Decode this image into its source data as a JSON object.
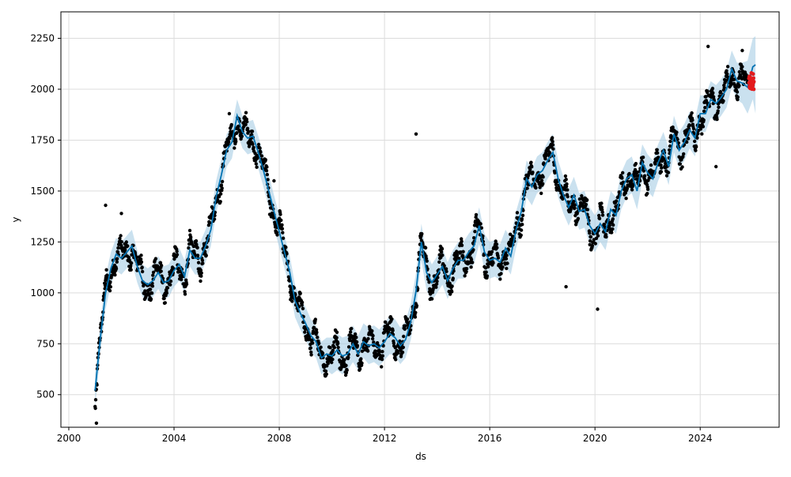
{
  "chart_data": {
    "type": "line",
    "xlabel": "ds",
    "ylabel": "y",
    "xlim": [
      1999.7,
      2027.0
    ],
    "ylim": [
      340,
      2380
    ],
    "x_ticks": [
      2000,
      2004,
      2008,
      2012,
      2016,
      2020,
      2024
    ],
    "x_tick_labels": [
      "2000",
      "2004",
      "2008",
      "2012",
      "2016",
      "2020",
      "2024"
    ],
    "y_ticks": [
      500,
      750,
      1000,
      1250,
      1500,
      1750,
      2000,
      2250
    ],
    "y_tick_labels": [
      "500",
      "750",
      "1000",
      "1250",
      "1500",
      "1750",
      "2000",
      "2250"
    ],
    "grid": true,
    "colors": {
      "forecast_line": "#0072B2",
      "uncertainty_band": "#a6cde5",
      "observed_points": "#000000",
      "future_points": "#e31a1c",
      "grid": "#dcdcdc"
    },
    "forecast": {
      "x": [
        2001.0,
        2001.2,
        2001.4,
        2001.6,
        2001.8,
        2002.0,
        2002.2,
        2002.4,
        2002.6,
        2002.8,
        2003.0,
        2003.2,
        2003.4,
        2003.6,
        2003.8,
        2004.0,
        2004.2,
        2004.4,
        2004.6,
        2004.8,
        2005.0,
        2005.2,
        2005.4,
        2005.6,
        2005.8,
        2006.0,
        2006.2,
        2006.4,
        2006.6,
        2006.8,
        2007.0,
        2007.2,
        2007.4,
        2007.6,
        2007.8,
        2008.0,
        2008.2,
        2008.4,
        2008.6,
        2008.8,
        2009.0,
        2009.2,
        2009.4,
        2009.6,
        2009.8,
        2010.0,
        2010.2,
        2010.4,
        2010.6,
        2010.8,
        2011.0,
        2011.2,
        2011.4,
        2011.6,
        2011.8,
        2012.0,
        2012.2,
        2012.4,
        2012.6,
        2012.8,
        2013.0,
        2013.2,
        2013.4,
        2013.6,
        2013.8,
        2014.0,
        2014.2,
        2014.4,
        2014.6,
        2014.8,
        2015.0,
        2015.2,
        2015.4,
        2015.6,
        2015.8,
        2016.0,
        2016.2,
        2016.4,
        2016.6,
        2016.8,
        2017.0,
        2017.2,
        2017.4,
        2017.6,
        2017.8,
        2018.0,
        2018.2,
        2018.4,
        2018.6,
        2018.8,
        2019.0,
        2019.2,
        2019.4,
        2019.6,
        2019.8,
        2020.0,
        2020.2,
        2020.4,
        2020.6,
        2020.8,
        2021.0,
        2021.2,
        2021.4,
        2021.6,
        2021.8,
        2022.0,
        2022.2,
        2022.4,
        2022.6,
        2022.8,
        2023.0,
        2023.2,
        2023.4,
        2023.6,
        2023.8,
        2024.0,
        2024.2,
        2024.4,
        2024.6,
        2024.8,
        2025.0,
        2025.2,
        2025.4,
        2025.6,
        2025.8,
        2026.0,
        2026.1
      ],
      "yhat": [
        520,
        780,
        1000,
        1120,
        1190,
        1170,
        1200,
        1230,
        1130,
        1060,
        1040,
        1060,
        1100,
        1050,
        1060,
        1110,
        1140,
        1080,
        1210,
        1170,
        1170,
        1230,
        1310,
        1470,
        1580,
        1700,
        1740,
        1870,
        1790,
        1760,
        1770,
        1690,
        1600,
        1500,
        1400,
        1300,
        1200,
        1100,
        960,
        900,
        850,
        790,
        760,
        680,
        700,
        690,
        720,
        690,
        700,
        750,
        700,
        760,
        740,
        750,
        730,
        760,
        800,
        780,
        740,
        770,
        860,
        1010,
        1250,
        1100,
        1050,
        1090,
        1130,
        1060,
        1120,
        1160,
        1160,
        1200,
        1230,
        1330,
        1200,
        1160,
        1170,
        1150,
        1220,
        1180,
        1310,
        1400,
        1560,
        1520,
        1580,
        1600,
        1650,
        1690,
        1560,
        1480,
        1420,
        1480,
        1400,
        1410,
        1330,
        1290,
        1340,
        1300,
        1410,
        1380,
        1500,
        1560,
        1580,
        1500,
        1640,
        1590,
        1560,
        1640,
        1700,
        1620,
        1780,
        1700,
        1740,
        1800,
        1760,
        1880,
        1880,
        1950,
        1930,
        1960,
        2000,
        2100,
        2040,
        2030,
        2010,
        2110,
        2120
      ],
      "yhat_lower": [
        440,
        700,
        920,
        1040,
        1110,
        1090,
        1120,
        1150,
        1050,
        980,
        960,
        980,
        1020,
        970,
        980,
        1030,
        1060,
        1000,
        1130,
        1090,
        1090,
        1150,
        1230,
        1390,
        1500,
        1620,
        1660,
        1790,
        1710,
        1680,
        1690,
        1610,
        1520,
        1420,
        1320,
        1220,
        1120,
        1020,
        880,
        820,
        770,
        710,
        680,
        600,
        620,
        600,
        620,
        600,
        620,
        660,
        620,
        680,
        650,
        660,
        640,
        670,
        700,
        690,
        650,
        680,
        770,
        920,
        1160,
        1010,
        960,
        1000,
        1040,
        970,
        1030,
        1070,
        1070,
        1110,
        1140,
        1240,
        1110,
        1070,
        1080,
        1060,
        1130,
        1090,
        1220,
        1310,
        1470,
        1430,
        1490,
        1510,
        1560,
        1600,
        1470,
        1390,
        1330,
        1390,
        1310,
        1320,
        1240,
        1200,
        1250,
        1210,
        1320,
        1290,
        1410,
        1470,
        1490,
        1410,
        1550,
        1500,
        1470,
        1550,
        1610,
        1530,
        1690,
        1610,
        1650,
        1710,
        1670,
        1790,
        1790,
        1860,
        1840,
        1870,
        1910,
        2010,
        1950,
        1930,
        1880,
        1950,
        1880
      ],
      "yhat_upper": [
        600,
        860,
        1080,
        1200,
        1270,
        1250,
        1280,
        1310,
        1210,
        1140,
        1120,
        1140,
        1180,
        1130,
        1140,
        1190,
        1220,
        1160,
        1290,
        1250,
        1250,
        1310,
        1390,
        1550,
        1660,
        1780,
        1820,
        1950,
        1870,
        1840,
        1850,
        1770,
        1680,
        1580,
        1480,
        1380,
        1280,
        1180,
        1040,
        980,
        930,
        870,
        840,
        760,
        780,
        780,
        800,
        780,
        790,
        840,
        790,
        850,
        830,
        840,
        820,
        850,
        890,
        870,
        830,
        860,
        950,
        1100,
        1340,
        1190,
        1140,
        1180,
        1220,
        1150,
        1210,
        1250,
        1250,
        1290,
        1320,
        1420,
        1290,
        1250,
        1260,
        1240,
        1310,
        1270,
        1400,
        1490,
        1650,
        1610,
        1670,
        1690,
        1740,
        1780,
        1650,
        1570,
        1510,
        1570,
        1490,
        1500,
        1420,
        1380,
        1430,
        1390,
        1500,
        1470,
        1590,
        1650,
        1670,
        1590,
        1730,
        1680,
        1650,
        1730,
        1790,
        1710,
        1870,
        1790,
        1830,
        1890,
        1850,
        1970,
        1970,
        2040,
        2020,
        2050,
        2090,
        2190,
        2130,
        2130,
        2140,
        2250,
        2260
      ]
    },
    "observed_outliers": [
      {
        "x": 2001.05,
        "y": 360
      },
      {
        "x": 2001.4,
        "y": 1430
      },
      {
        "x": 2002.0,
        "y": 1390
      },
      {
        "x": 2006.1,
        "y": 1880
      },
      {
        "x": 2007.8,
        "y": 1550
      },
      {
        "x": 2013.2,
        "y": 1780
      },
      {
        "x": 2018.9,
        "y": 1030
      },
      {
        "x": 2020.1,
        "y": 920
      },
      {
        "x": 2024.3,
        "y": 2210
      },
      {
        "x": 2024.6,
        "y": 1620
      },
      {
        "x": 2025.6,
        "y": 2190
      }
    ],
    "future_points": {
      "x_start": 2025.85,
      "x_end": 2026.05,
      "y_min": 2000,
      "y_max": 2080
    }
  }
}
